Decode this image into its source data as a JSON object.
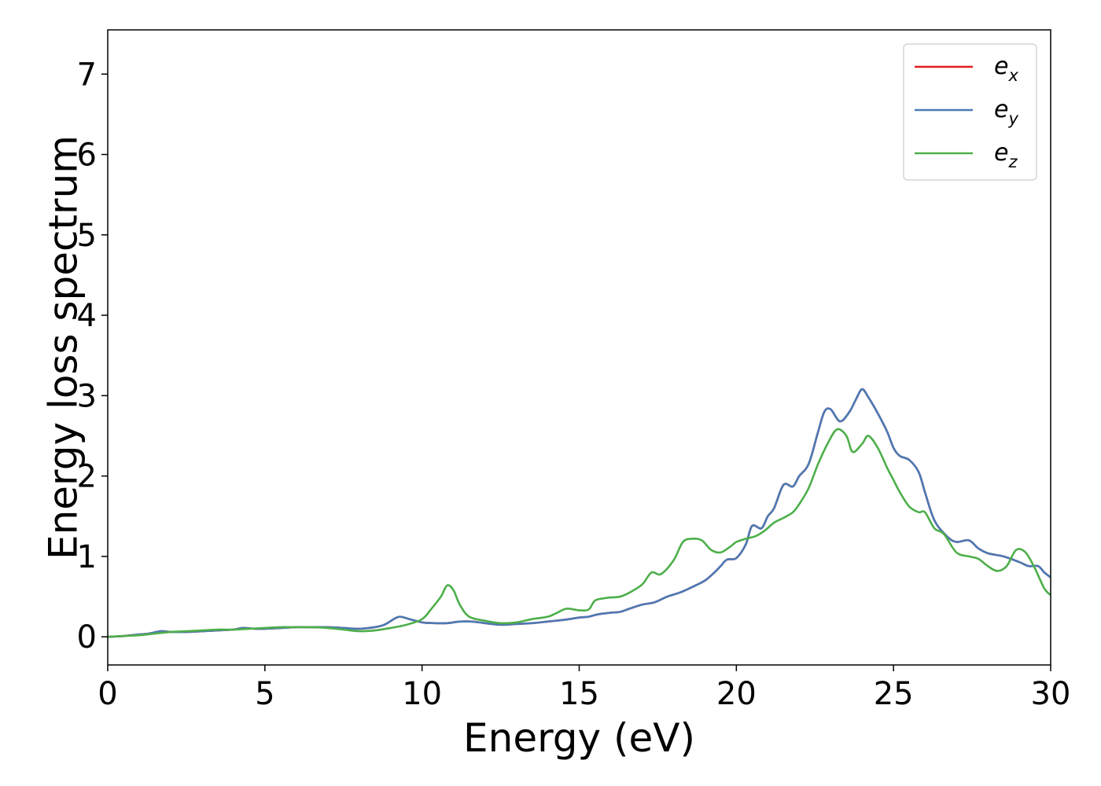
{
  "chart_data": {
    "type": "line",
    "xlabel": "Energy (eV)",
    "ylabel": "Energy loss spectrum",
    "xlim": [
      0,
      30
    ],
    "ylim": [
      -0.35,
      7.55
    ],
    "xticks": [
      0,
      5,
      10,
      15,
      20,
      25,
      30
    ],
    "yticks": [
      0,
      1,
      2,
      3,
      4,
      5,
      6,
      7
    ],
    "grid": false,
    "legend_position": "top-right",
    "series": [
      {
        "name": "e_x",
        "label_base": "e",
        "label_sub": "x",
        "color": "#e41a1c",
        "x": [
          0,
          0.5,
          1,
          1.3,
          1.7,
          2,
          2.5,
          3,
          3.5,
          4,
          4.3,
          4.7,
          5,
          5.5,
          6,
          6.5,
          7,
          7.5,
          8,
          8.5,
          8.8,
          9.1,
          9.3,
          9.6,
          10,
          10.4,
          10.8,
          11.2,
          11.6,
          12,
          12.5,
          13,
          13.5,
          14,
          14.5,
          15,
          15.3,
          15.6,
          16,
          16.3,
          16.6,
          17,
          17.4,
          17.8,
          18.2,
          18.6,
          19,
          19.3,
          19.5,
          19.7,
          20,
          20.3,
          20.5,
          20.8,
          21,
          21.2,
          21.5,
          21.8,
          22,
          22.3,
          22.6,
          22.8,
          23,
          23.3,
          23.6,
          23.8,
          24,
          24.2,
          24.5,
          24.8,
          25,
          25.2,
          25.5,
          25.8,
          26,
          26.3,
          26.7,
          27,
          27.4,
          27.7,
          28,
          28.5,
          29,
          29.3,
          29.6,
          29.8,
          30
        ],
        "y": [
          0,
          0.01,
          0.03,
          0.04,
          0.07,
          0.06,
          0.06,
          0.07,
          0.08,
          0.09,
          0.11,
          0.1,
          0.1,
          0.11,
          0.12,
          0.12,
          0.12,
          0.11,
          0.1,
          0.12,
          0.15,
          0.22,
          0.25,
          0.22,
          0.18,
          0.17,
          0.17,
          0.19,
          0.19,
          0.17,
          0.15,
          0.16,
          0.17,
          0.19,
          0.21,
          0.24,
          0.25,
          0.28,
          0.3,
          0.31,
          0.35,
          0.4,
          0.43,
          0.5,
          0.55,
          0.62,
          0.7,
          0.8,
          0.88,
          0.96,
          0.98,
          1.15,
          1.38,
          1.35,
          1.5,
          1.6,
          1.89,
          1.87,
          2.0,
          2.15,
          2.55,
          2.8,
          2.83,
          2.68,
          2.8,
          2.95,
          3.08,
          2.98,
          2.78,
          2.55,
          2.35,
          2.25,
          2.2,
          2.05,
          1.8,
          1.45,
          1.25,
          1.18,
          1.2,
          1.1,
          1.04,
          1.0,
          0.93,
          0.88,
          0.88,
          0.8,
          0.74
        ]
      },
      {
        "name": "e_y",
        "label_base": "e",
        "label_sub": "y",
        "color": "#4a7ab5",
        "x": [
          0,
          0.5,
          1,
          1.3,
          1.7,
          2,
          2.5,
          3,
          3.5,
          4,
          4.3,
          4.7,
          5,
          5.5,
          6,
          6.5,
          7,
          7.5,
          8,
          8.5,
          8.8,
          9.1,
          9.3,
          9.6,
          10,
          10.4,
          10.8,
          11.2,
          11.6,
          12,
          12.5,
          13,
          13.5,
          14,
          14.5,
          15,
          15.3,
          15.6,
          16,
          16.3,
          16.6,
          17,
          17.4,
          17.8,
          18.2,
          18.6,
          19,
          19.3,
          19.5,
          19.7,
          20,
          20.3,
          20.5,
          20.8,
          21,
          21.2,
          21.5,
          21.8,
          22,
          22.3,
          22.6,
          22.8,
          23,
          23.3,
          23.6,
          23.8,
          24,
          24.2,
          24.5,
          24.8,
          25,
          25.2,
          25.5,
          25.8,
          26,
          26.3,
          26.7,
          27,
          27.4,
          27.7,
          28,
          28.5,
          29,
          29.3,
          29.6,
          29.8,
          30
        ],
        "y": [
          0,
          0.01,
          0.03,
          0.04,
          0.07,
          0.06,
          0.06,
          0.07,
          0.08,
          0.09,
          0.11,
          0.1,
          0.1,
          0.11,
          0.12,
          0.12,
          0.12,
          0.11,
          0.1,
          0.12,
          0.15,
          0.22,
          0.25,
          0.22,
          0.18,
          0.17,
          0.17,
          0.19,
          0.19,
          0.17,
          0.15,
          0.16,
          0.17,
          0.19,
          0.21,
          0.24,
          0.25,
          0.28,
          0.3,
          0.31,
          0.35,
          0.4,
          0.43,
          0.5,
          0.55,
          0.62,
          0.7,
          0.8,
          0.88,
          0.96,
          0.98,
          1.15,
          1.38,
          1.35,
          1.5,
          1.6,
          1.89,
          1.87,
          2.0,
          2.15,
          2.55,
          2.8,
          2.83,
          2.68,
          2.8,
          2.95,
          3.08,
          2.98,
          2.78,
          2.55,
          2.35,
          2.25,
          2.2,
          2.05,
          1.8,
          1.45,
          1.25,
          1.18,
          1.2,
          1.1,
          1.04,
          1.0,
          0.93,
          0.88,
          0.88,
          0.8,
          0.74
        ]
      },
      {
        "name": "e_z",
        "label_base": "e",
        "label_sub": "z",
        "color": "#4daf4a",
        "x": [
          0,
          0.5,
          1,
          1.5,
          2,
          2.5,
          3,
          3.5,
          4,
          4.5,
          5,
          5.5,
          6,
          6.5,
          7,
          7.5,
          8,
          8.5,
          9,
          9.5,
          10,
          10.3,
          10.6,
          10.8,
          11,
          11.2,
          11.5,
          12,
          12.5,
          13,
          13.5,
          14,
          14.3,
          14.6,
          15,
          15.3,
          15.5,
          15.8,
          16,
          16.3,
          16.6,
          17,
          17.3,
          17.6,
          18,
          18.3,
          18.6,
          18.9,
          19.2,
          19.5,
          19.8,
          20,
          20.3,
          20.6,
          20.9,
          21.2,
          21.5,
          21.8,
          22,
          22.3,
          22.6,
          22.9,
          23.2,
          23.5,
          23.7,
          24,
          24.2,
          24.5,
          24.8,
          25,
          25.2,
          25.5,
          25.8,
          26,
          26.3,
          26.6,
          27,
          27.4,
          27.7,
          28,
          28.3,
          28.6,
          28.9,
          29.2,
          29.5,
          29.8,
          30
        ],
        "y": [
          0,
          0.01,
          0.02,
          0.04,
          0.06,
          0.07,
          0.08,
          0.09,
          0.09,
          0.1,
          0.11,
          0.12,
          0.12,
          0.12,
          0.11,
          0.09,
          0.07,
          0.08,
          0.11,
          0.15,
          0.22,
          0.35,
          0.5,
          0.64,
          0.58,
          0.4,
          0.25,
          0.2,
          0.17,
          0.18,
          0.22,
          0.25,
          0.3,
          0.35,
          0.33,
          0.34,
          0.45,
          0.48,
          0.49,
          0.5,
          0.55,
          0.65,
          0.8,
          0.78,
          0.95,
          1.18,
          1.22,
          1.2,
          1.08,
          1.05,
          1.12,
          1.18,
          1.22,
          1.25,
          1.32,
          1.42,
          1.48,
          1.55,
          1.65,
          1.85,
          2.15,
          2.4,
          2.58,
          2.5,
          2.3,
          2.4,
          2.5,
          2.35,
          2.1,
          1.95,
          1.8,
          1.62,
          1.55,
          1.55,
          1.35,
          1.28,
          1.05,
          1.0,
          0.97,
          0.88,
          0.82,
          0.88,
          1.08,
          1.05,
          0.85,
          0.6,
          0.52
        ]
      }
    ]
  }
}
